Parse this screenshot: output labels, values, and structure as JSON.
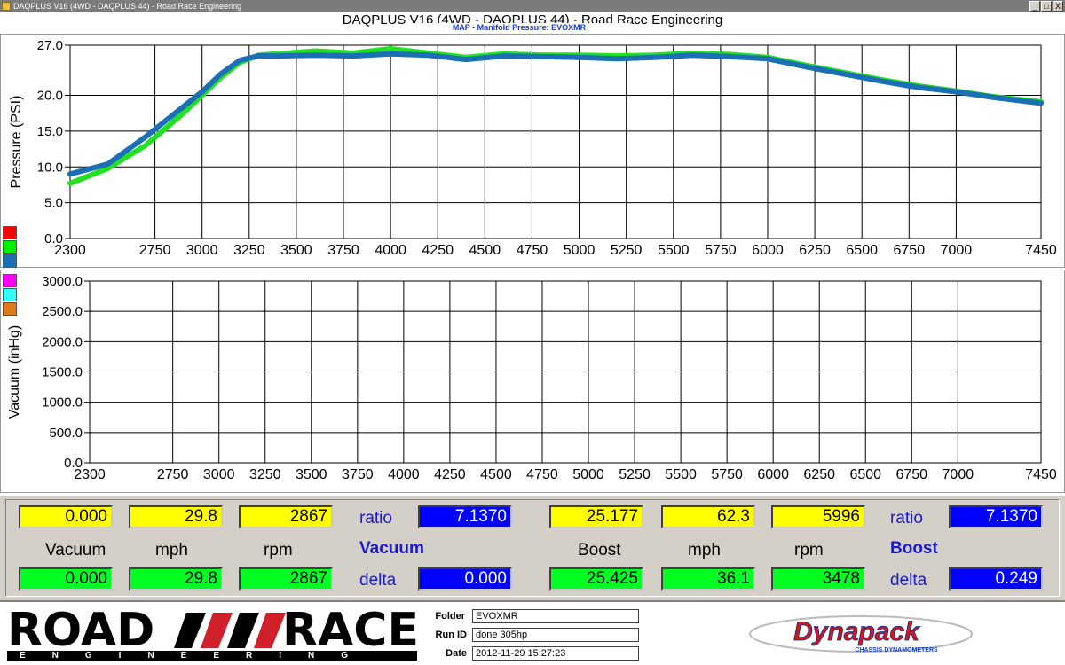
{
  "window": {
    "title": "DAQPLUS V16 (4WD - DAQPLUS 44) - Road Race Engineering",
    "buttons": [
      "_",
      "□",
      "X"
    ]
  },
  "header": {
    "title": "DAQPLUS V16 (4WD - DAQPLUS 44) - Road Race Engineering",
    "subtitle": "MAP - Manifold Pressure: EVOXMR"
  },
  "legend": {
    "top_colors": [
      "#ff0000",
      "#00ee00",
      "#1a6fb5"
    ],
    "bottom_colors": [
      "#ff00ff",
      "#33ffff",
      "#e0781e"
    ]
  },
  "chart_data": [
    {
      "type": "line",
      "ylabel": "Pressure (PSI)",
      "xlim": [
        2300,
        7450
      ],
      "ylim": [
        0,
        27
      ],
      "yticks": [
        "27.0",
        "20.0",
        "15.0",
        "10.0",
        "5.0",
        "0.0"
      ],
      "yticks_values": [
        27,
        20,
        15,
        10,
        5,
        0
      ],
      "xticks": [
        "2300",
        "2750",
        "3000",
        "3250",
        "3500",
        "3750",
        "4000",
        "4250",
        "4500",
        "4750",
        "5000",
        "5250",
        "5500",
        "5750",
        "6000",
        "6250",
        "6500",
        "6750",
        "7000",
        "7450"
      ],
      "xticks_values": [
        2300,
        2750,
        3000,
        3250,
        3500,
        3750,
        4000,
        4250,
        4500,
        4750,
        5000,
        5250,
        5500,
        5750,
        6000,
        6250,
        6500,
        6750,
        7000,
        7450
      ],
      "grid": true,
      "series": [
        {
          "color": "#22e022",
          "x": [
            2300,
            2500,
            2700,
            2900,
            3000,
            3100,
            3200,
            3300,
            3400,
            3600,
            3800,
            4000,
            4200,
            4400,
            4600,
            4800,
            5000,
            5200,
            5400,
            5600,
            5800,
            6000,
            6200,
            6400,
            6600,
            6800,
            7000,
            7200,
            7450
          ],
          "y": [
            7.7,
            9.8,
            13.0,
            17.5,
            20.0,
            22.5,
            24.6,
            25.6,
            25.8,
            26.2,
            25.9,
            26.5,
            25.9,
            25.3,
            25.8,
            25.6,
            25.6,
            25.5,
            25.6,
            25.9,
            25.7,
            25.3,
            24.2,
            23.2,
            22.2,
            21.3,
            20.6,
            19.8,
            19.1
          ]
        },
        {
          "color": "#1a6fb5",
          "x": [
            2300,
            2500,
            2700,
            2900,
            3000,
            3100,
            3200,
            3300,
            3400,
            3600,
            3800,
            4000,
            4200,
            4400,
            4600,
            4800,
            5000,
            5200,
            5400,
            5600,
            5800,
            6000,
            6200,
            6400,
            6600,
            6800,
            7000,
            7200,
            7450
          ],
          "y": [
            9.0,
            10.4,
            14.2,
            18.4,
            20.5,
            23.0,
            24.9,
            25.5,
            25.5,
            25.6,
            25.5,
            25.8,
            25.6,
            25.0,
            25.5,
            25.4,
            25.3,
            25.1,
            25.3,
            25.6,
            25.4,
            25.1,
            24.0,
            23.0,
            22.0,
            21.1,
            20.5,
            19.7,
            18.9
          ]
        }
      ]
    },
    {
      "type": "line",
      "ylabel": "Vacuum (inHg)",
      "xlim": [
        2300,
        7450
      ],
      "ylim": [
        0,
        3000
      ],
      "yticks": [
        "3000.0",
        "2500.0",
        "2000.0",
        "1500.0",
        "1000.0",
        "500.0",
        "0.0"
      ],
      "yticks_values": [
        3000,
        2500,
        2000,
        1500,
        1000,
        500,
        0
      ],
      "xticks": [
        "2300",
        "2750",
        "3000",
        "3250",
        "3500",
        "3750",
        "4000",
        "4250",
        "4500",
        "4750",
        "5000",
        "5250",
        "5500",
        "5750",
        "6000",
        "6250",
        "6500",
        "6750",
        "7000",
        "7450"
      ],
      "xticks_values": [
        2300,
        2750,
        3000,
        3250,
        3500,
        3750,
        4000,
        4250,
        4500,
        4750,
        5000,
        5250,
        5500,
        5750,
        6000,
        6250,
        6500,
        6750,
        7000,
        7450
      ],
      "grid": true,
      "series": []
    }
  ],
  "readout": {
    "vacuum": {
      "row1": [
        "0.000",
        "29.8",
        "2867"
      ],
      "row2": [
        "0.000",
        "29.8",
        "2867"
      ],
      "labels": [
        "Vacuum",
        "mph",
        "rpm"
      ],
      "ratio_label": "ratio",
      "ratio_value": "7.1370",
      "title": "Vacuum",
      "delta_label": "delta",
      "delta_value": "0.000"
    },
    "boost": {
      "row1": [
        "25.177",
        "62.3",
        "5996"
      ],
      "row2": [
        "25.425",
        "36.1",
        "3478"
      ],
      "labels": [
        "Boost",
        "mph",
        "rpm"
      ],
      "ratio_label": "ratio",
      "ratio_value": "7.1370",
      "title": "Boost",
      "delta_label": "delta",
      "delta_value": "0.249"
    }
  },
  "footer": {
    "logo_left_words": [
      "ROAD",
      "RACE"
    ],
    "logo_left_bar": "ENGINEERING",
    "folder_label": "Folder",
    "folder_value": "EVOXMR",
    "runid_label": "Run ID",
    "runid_value": "done 305hp",
    "date_label": "Date",
    "date_value": "2012-11-29 15:27:23",
    "logo_right_word": "Dynapack",
    "logo_right_sub": "CHASSIS DYNAMOMETERS"
  }
}
